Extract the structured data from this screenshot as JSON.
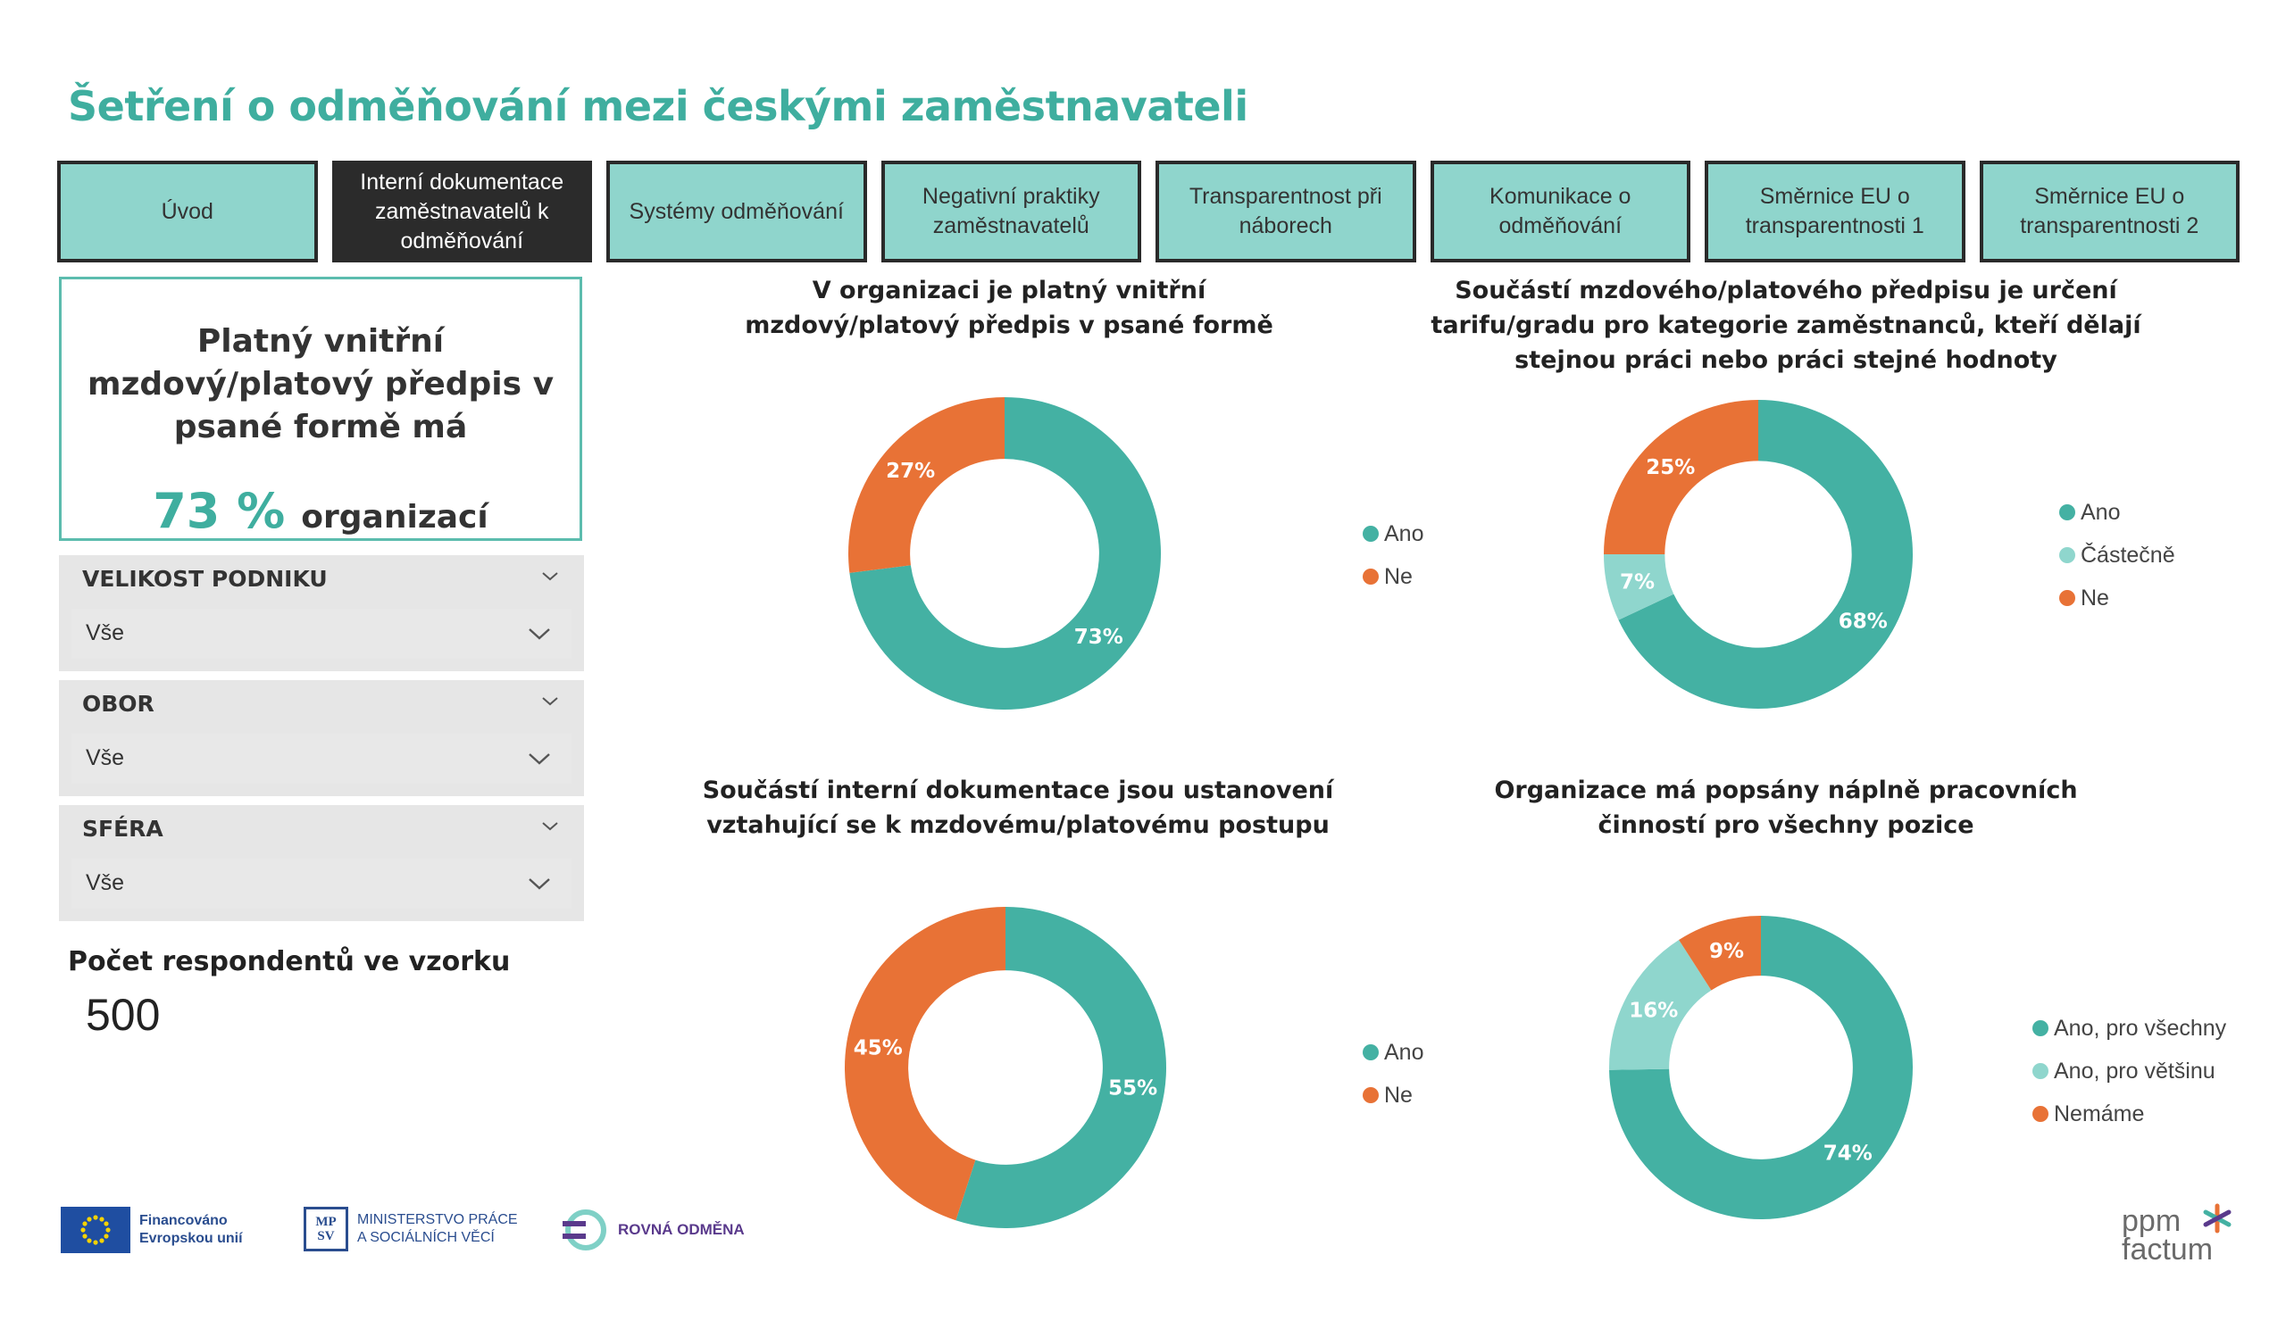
{
  "page": {
    "title": "Šetření o odměňování mezi českými zaměstnavateli"
  },
  "tabs": [
    {
      "label": "Úvod"
    },
    {
      "label": "Interní dokumentace zaměstnavatelů k odměňování"
    },
    {
      "label": "Systémy odměňování"
    },
    {
      "label": "Negativní praktiky zaměstnavatelů"
    },
    {
      "label": "Transparentnost při náborech"
    },
    {
      "label": "Komunikace o odměňování"
    },
    {
      "label": "Směrnice EU o transparentnosti 1"
    },
    {
      "label": "Směrnice EU o transparentnosti 2"
    }
  ],
  "kpi": {
    "text": "Platný vnitřní mzdový/platový předpis v psané formě má",
    "value": "73 %",
    "unit": "organizací"
  },
  "filters": [
    {
      "label": "VELIKOST PODNIKU",
      "value": "Vše"
    },
    {
      "label": "OBOR",
      "value": "Vše"
    },
    {
      "label": "SFÉRA",
      "value": "Vše"
    }
  ],
  "respondents": {
    "label": "Počet respondentů ve vzorku",
    "value": "500"
  },
  "colors": {
    "teal": "#44b1a3",
    "light_teal": "#8fd6cd",
    "orange": "#e87236",
    "accent": "#3fae9f"
  },
  "chart_data": [
    {
      "type": "pie",
      "title": "V organizaci je platný vnitřní mzdový/platový předpis v psané formě",
      "categories": [
        "Ano",
        "Ne"
      ],
      "values": [
        73,
        27
      ],
      "labels": [
        "73%",
        "27%"
      ],
      "colors": [
        "#44b1a3",
        "#e87236"
      ],
      "legend": "right"
    },
    {
      "type": "pie",
      "title": "Součástí mzdového/platového předpisu je určení tarifu/gradu pro kategorie zaměstnanců, kteří dělají stejnou práci nebo práci stejné hodnoty",
      "categories": [
        "Ano",
        "Částečně",
        "Ne"
      ],
      "values": [
        68,
        7,
        25
      ],
      "labels": [
        "68%",
        "7%",
        "25%"
      ],
      "colors": [
        "#44b1a3",
        "#8fd6cd",
        "#e87236"
      ],
      "legend": "right"
    },
    {
      "type": "pie",
      "title": "Součástí interní dokumentace jsou ustanovení vztahující se k mzdovému/platovému postupu",
      "categories": [
        "Ano",
        "Ne"
      ],
      "values": [
        55,
        45
      ],
      "labels": [
        "55%",
        "45%"
      ],
      "colors": [
        "#44b1a3",
        "#e87236"
      ],
      "legend": "right"
    },
    {
      "type": "pie",
      "title": "Organizace má popsány náplně pracovních činností pro všechny pozice",
      "categories": [
        "Ano, pro všechny",
        "Ano, pro většinu",
        "Nemáme"
      ],
      "values": [
        74,
        16,
        9
      ],
      "labels": [
        "74%",
        "16%",
        "9%"
      ],
      "colors": [
        "#44b1a3",
        "#8fd6cd",
        "#e87236"
      ],
      "legend": "right"
    }
  ],
  "footer": {
    "eu_text": [
      "Financováno",
      "Evropskou unií"
    ],
    "mpsv_logo": [
      "MP",
      "SV"
    ],
    "mpsv_text": [
      "MINISTERSTVO PRÁCE",
      "A SOCIÁLNÍCH VĚCÍ"
    ],
    "rovna_text": "ROVNÁ ODMĚNA",
    "ppm_text": [
      "ppm",
      "factum"
    ]
  }
}
